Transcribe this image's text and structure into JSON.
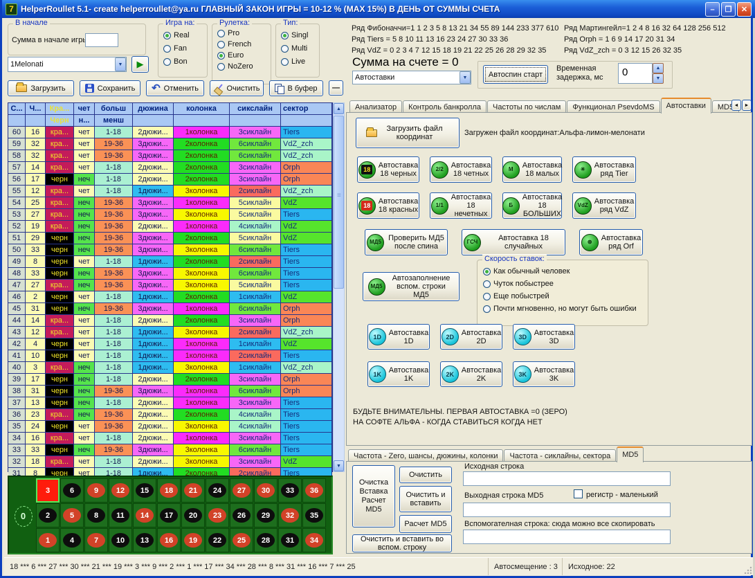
{
  "window": {
    "title": "HelperRoullet 5.1- create helperroullet@ya.ru ГЛАВНЫЙ ЗАКОН ИГРЫ = 10-12 % (MAX 15%) В ДЕНЬ ОТ СУММЫ СЧЕТА",
    "icon_text": "7",
    "minimize": "–",
    "maximize": "❐",
    "close": "✕"
  },
  "top_left": {
    "start_group": {
      "title": "В начале",
      "label": "Сумма в начале игры",
      "value": ""
    },
    "profile_combo": {
      "value": "1Melonati"
    },
    "play_icon": "▶",
    "game_on": {
      "title": "Игра на:",
      "options": [
        "Real",
        "Fan",
        "Bon"
      ],
      "selected": "Real"
    },
    "roulette": {
      "title": "Рулетка:",
      "options": [
        "Pro",
        "French",
        "Euro",
        "NoZero"
      ],
      "selected": "Euro"
    },
    "type": {
      "title": "Тип:",
      "options": [
        "Singl",
        "Multi",
        "Live"
      ],
      "selected": "Singl"
    },
    "toolbar": [
      {
        "icon": "folder-open",
        "label": "Загрузить"
      },
      {
        "icon": "floppy-disk",
        "label": "Сохранить"
      },
      {
        "icon": "undo-arrow",
        "label": "Отменить"
      },
      {
        "icon": "broom",
        "label": "Очистить"
      },
      {
        "icon": "copy",
        "label": "В буфер"
      }
    ],
    "minus_button": "—"
  },
  "top_right": {
    "rows_col1": [
      "Ряд Фибоначчи=1 1 2 3 5 8 13 21 34 55 89 144 233 377 610",
      "Ряд Tiers = 5 8 10 11 13 16 23 24 27 30 33 36",
      "Ряд VdZ = 0 2 3 4 7 12 15 18 19 21 22 25 26 28 29 32 35"
    ],
    "rows_col2": [
      "Ряд Мартингейл=1 2 4 8 16 32 64 128 256 512",
      "Ряд Orph = 1 6 9 14 17 20 31 34",
      "Ряд VdZ_zch = 0 3 12 15 26 32 35"
    ],
    "balance": "Сумма на счете = 0",
    "autobets_combo": "Автоставки",
    "autospin_button": "Автоспин старт",
    "delay_label_1": "Временная",
    "delay_label_2": "задержка, мс",
    "delay_value": "0"
  },
  "table": {
    "header_row1": [
      "С...",
      "Ч...",
      "Кра...",
      "чет",
      "больш",
      "дюжина",
      "колонка",
      "сикслайн",
      "сектор"
    ],
    "header_row2": [
      "",
      "",
      "Черн",
      "н...",
      "менш",
      "",
      "",
      "",
      ""
    ],
    "rows": [
      [
        60,
        16,
        "кра...",
        "чет",
        "1-18",
        "2дюжи...",
        "1колонка",
        "3сиклайн",
        "Tiers"
      ],
      [
        59,
        32,
        "кра...",
        "чет",
        "19-36",
        "3дюжи...",
        "2колонка",
        "6сиклайн",
        "VdZ_zch"
      ],
      [
        58,
        32,
        "кра...",
        "чет",
        "19-36",
        "3дюжи...",
        "2колонка",
        "6сиклайн",
        "VdZ_zch"
      ],
      [
        57,
        14,
        "кра...",
        "чет",
        "1-18",
        "2дюжи...",
        "2колонка",
        "3сиклайн",
        "Orph"
      ],
      [
        56,
        17,
        "черн",
        "неч",
        "1-18",
        "2дюжи...",
        "2колонка",
        "3сиклайн",
        "Orph"
      ],
      [
        55,
        12,
        "кра...",
        "чет",
        "1-18",
        "1дюжи...",
        "3колонка",
        "2сиклайн",
        "VdZ_zch"
      ],
      [
        54,
        25,
        "кра...",
        "неч",
        "19-36",
        "3дюжи...",
        "1колонка",
        "5сиклайн",
        "VdZ"
      ],
      [
        53,
        27,
        "кра...",
        "неч",
        "19-36",
        "3дюжи...",
        "3колонка",
        "5сиклайн",
        "Tiers"
      ],
      [
        52,
        19,
        "кра...",
        "неч",
        "19-36",
        "2дюжи...",
        "1колонка",
        "4сиклайн",
        "VdZ"
      ],
      [
        51,
        29,
        "черн",
        "неч",
        "19-36",
        "3дюжи...",
        "2колонка",
        "5сиклайн",
        "VdZ"
      ],
      [
        50,
        33,
        "черн",
        "неч",
        "19-36",
        "3дюжи...",
        "3колонка",
        "6сиклайн",
        "Tiers"
      ],
      [
        49,
        8,
        "черн",
        "чет",
        "1-18",
        "1дюжи...",
        "2колонка",
        "2сиклайн",
        "Tiers"
      ],
      [
        48,
        33,
        "черн",
        "неч",
        "19-36",
        "3дюжи...",
        "3колонка",
        "6сиклайн",
        "Tiers"
      ],
      [
        47,
        27,
        "кра...",
        "неч",
        "19-36",
        "3дюжи...",
        "3колонка",
        "5сиклайн",
        "Tiers"
      ],
      [
        46,
        2,
        "черн",
        "чет",
        "1-18",
        "1дюжи...",
        "2колонка",
        "1сиклайн",
        "VdZ"
      ],
      [
        45,
        31,
        "черн",
        "неч",
        "19-36",
        "3дюжи...",
        "1колонка",
        "6сиклайн",
        "Orph"
      ],
      [
        44,
        14,
        "кра...",
        "чет",
        "1-18",
        "2дюжи...",
        "2колонка",
        "3сиклайн",
        "Orph"
      ],
      [
        43,
        12,
        "кра...",
        "чет",
        "1-18",
        "1дюжи...",
        "3колонка",
        "2сиклайн",
        "VdZ_zch"
      ],
      [
        42,
        4,
        "черн",
        "чет",
        "1-18",
        "1дюжи...",
        "1колонка",
        "1сиклайн",
        "VdZ"
      ],
      [
        41,
        10,
        "черн",
        "чет",
        "1-18",
        "1дюжи...",
        "1колонка",
        "2сиклайн",
        "Tiers"
      ],
      [
        40,
        3,
        "кра...",
        "неч",
        "1-18",
        "1дюжи...",
        "3колонка",
        "1сиклайн",
        "VdZ_zch"
      ],
      [
        39,
        17,
        "черн",
        "неч",
        "1-18",
        "2дюжи...",
        "2колонка",
        "3сиклайн",
        "Orph"
      ],
      [
        38,
        31,
        "черн",
        "неч",
        "19-36",
        "3дюжи...",
        "1колонка",
        "6сиклайн",
        "Orph"
      ],
      [
        37,
        13,
        "черн",
        "неч",
        "1-18",
        "2дюжи...",
        "1колонка",
        "3сиклайн",
        "Tiers"
      ],
      [
        36,
        23,
        "кра...",
        "неч",
        "19-36",
        "2дюжи...",
        "2колонка",
        "4сиклайн",
        "Tiers"
      ],
      [
        35,
        24,
        "черн",
        "чет",
        "19-36",
        "2дюжи...",
        "3колонка",
        "4сиклайн",
        "Tiers"
      ],
      [
        34,
        16,
        "кра...",
        "чет",
        "1-18",
        "2дюжи...",
        "1колонка",
        "3сиклайн",
        "Tiers"
      ],
      [
        33,
        33,
        "черн",
        "неч",
        "19-36",
        "3дюжи...",
        "3колонка",
        "6сиклайн",
        "Tiers"
      ],
      [
        32,
        18,
        "кра...",
        "чет",
        "1-18",
        "2дюжи...",
        "3колонка",
        "3сиклайн",
        "VdZ"
      ],
      [
        31,
        8,
        "черн",
        "чет",
        "1-18",
        "1дюжи...",
        "2колонка",
        "2сиклайн",
        "Tiers"
      ]
    ]
  },
  "colors": {
    "red_cell": "#c41b5a",
    "black_cell": "#000000",
    "rb_text": "#f0e428",
    "even": "#fbfbb4",
    "odd": "#55e44c",
    "low": "#abf0d2",
    "high": "#fa9156",
    "spin_bg": "#d6e0d2",
    "num_bg": "#fbfbb4",
    "dozen": {
      "1": "#2ebcf0",
      "2": "#fbfbb4",
      "3": "#f767f7"
    },
    "column": {
      "1": "#fb2bfb",
      "2": "#22dd22",
      "3": "#f8f800"
    },
    "sixline": {
      "1": "#2ebcf0",
      "2": "#fa6a5e",
      "3": "#f767f7",
      "4": "#a9f5c8",
      "5": "#fafaa0",
      "6": "#71e83d"
    },
    "sector": {
      "Tiers": "#2ab6f0",
      "VdZ": "#56e42c",
      "Orph": "#fa8656",
      "VdZ_zch": "#a9f5c8"
    }
  },
  "board": {
    "rows": [
      [
        3,
        6,
        9,
        12,
        15,
        18,
        21,
        24,
        27,
        30,
        33,
        36
      ],
      [
        2,
        5,
        8,
        11,
        14,
        17,
        20,
        23,
        26,
        29,
        32,
        35
      ],
      [
        1,
        4,
        7,
        10,
        13,
        16,
        19,
        22,
        25,
        28,
        31,
        34
      ]
    ],
    "zero": "0",
    "red_numbers": [
      1,
      3,
      5,
      7,
      9,
      12,
      14,
      16,
      18,
      19,
      21,
      23,
      25,
      27,
      30,
      32,
      34,
      36
    ],
    "highlight": 3
  },
  "right_panel": {
    "tabs": [
      "Анализатор",
      "Контроль банкролла",
      "Частоты по числам",
      "Функционал PsevdoMS",
      "Автоставки",
      "MD5"
    ],
    "active_tab": "Автоставки",
    "arrow_left": "◄",
    "arrow_right": "►",
    "load_button": "Загрузить файл координат",
    "loaded_label": "Загружен файл координат:Альфа-лимон-мелонати",
    "buttons_row1": [
      {
        "icon": "18",
        "style": "b18",
        "label": "Автоставка 18 черных",
        "w": 90
      },
      {
        "icon": "2/2",
        "style": "g",
        "label": "Автоставка 18 четных",
        "w": 90
      },
      {
        "icon": "М",
        "style": "g",
        "label": "Автоставка 18 малых",
        "w": 86
      },
      {
        "icon": "✳",
        "style": "g",
        "label": "Автоставка ряд Tier",
        "w": 92
      }
    ],
    "buttons_row2": [
      {
        "icon": "18",
        "style": "r18",
        "label": "Автоставка 18 красных",
        "w": 90
      },
      {
        "icon": "1/1",
        "style": "g",
        "label": "Автоставка 18 нечетных",
        "w": 90
      },
      {
        "icon": "Б",
        "style": "g",
        "label": "Автоставка 18 БОЛЬШИХ",
        "w": 86
      },
      {
        "icon": "VdZ",
        "style": "g",
        "label": "Автоставка ряд VdZ",
        "w": 92
      }
    ],
    "buttons_row3": [
      {
        "icon": "МД5",
        "style": "g",
        "label": "Проверить МД5 после спина",
        "w": 120
      },
      {
        "icon": "ГСЧ",
        "style": "g",
        "label": "Автоставка 18 случайных",
        "w": 150
      },
      {
        "icon": "⊛",
        "style": "g",
        "label": "Автоставка ряд Orf",
        "w": 92
      }
    ],
    "fill_button": {
      "icon": "МД5",
      "style": "g",
      "label": "Автозаполнение вспом. строки МД5"
    },
    "speed_group": {
      "title": "Скорость ставок:",
      "options": [
        "Как обычный человек",
        "Чуток побыстрее",
        "Еще побыстрей",
        "Почти мгновенно, но могут быть ошибки"
      ],
      "selected": "Как обычный человек"
    },
    "buttons_d": [
      {
        "icon": "1D",
        "style": "c",
        "label": "Автоставка 1D",
        "w": 90
      },
      {
        "icon": "2D",
        "style": "c",
        "label": "Автоставка 2D",
        "w": 90
      },
      {
        "icon": "3D",
        "style": "c",
        "label": "Автоставка 3D",
        "w": 90
      }
    ],
    "buttons_k": [
      {
        "icon": "1K",
        "style": "c",
        "label": "Автоставка 1K",
        "w": 90
      },
      {
        "icon": "2K",
        "style": "c",
        "label": "Автоставка 2K",
        "w": 90
      },
      {
        "icon": "3K",
        "style": "c",
        "label": "Автоставка 3K",
        "w": 90
      }
    ],
    "warning_line1": "БУДЬТЕ ВНИМАТЕЛЬНЫ. ПЕРВАЯ АВТОСТАВКА =0 (ЗЕРО)",
    "warning_line2": "НА СОФТЕ АЛЬФА - КОГДА СТАВИТЬСЯ КОГДА НЕТ"
  },
  "bottom_panel": {
    "tabs": [
      "Частота - Zero, шансы, дюжины, колонки",
      "Частота - сиклайны, сектора",
      "MD5"
    ],
    "active_tab": "MD5",
    "big_button": "Очистка Вставка Расчет MD5",
    "clear_button": "Очистить",
    "clear_paste_button": "Очистить и вставить",
    "calc_button": "Расчет MD5",
    "clear_paste_aux_button": "Очистить и  вставить во вспом. строку",
    "source_label": "Исходная строка",
    "source_value": "",
    "output_label": "Выходная строка MD5",
    "case_label": "регистр  - маленький",
    "output_value": "",
    "aux_label": "Вспомогателная строка: сюда можно все скопировать",
    "aux_value": ""
  },
  "status_bar": {
    "history": "18 *** 6 *** 27 *** 30 *** 21 *** 19 *** 3 *** 9 *** 2 *** 1 *** 17 *** 34 *** 28 *** 8 *** 31 *** 16 *** 7 *** 25",
    "auto_offset": "Автосмещение : 3",
    "source": "Исходное: 22"
  }
}
